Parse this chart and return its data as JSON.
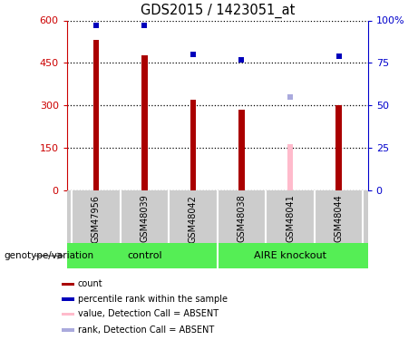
{
  "title": "GDS2015 / 1423051_at",
  "samples": [
    "GSM47956",
    "GSM48039",
    "GSM48042",
    "GSM48038",
    "GSM48041",
    "GSM48044"
  ],
  "bar_values": [
    530,
    477,
    320,
    285,
    162,
    300
  ],
  "bar_colors": [
    "#aa0000",
    "#aa0000",
    "#aa0000",
    "#aa0000",
    "#ffbbcc",
    "#aa0000"
  ],
  "rank_values": [
    97,
    97,
    80,
    77,
    55,
    79
  ],
  "rank_colors": [
    "#0000bb",
    "#0000bb",
    "#0000bb",
    "#0000bb",
    "#aaaadd",
    "#0000bb"
  ],
  "ylim_left": [
    0,
    600
  ],
  "ylim_right": [
    0,
    100
  ],
  "yticks_left": [
    0,
    150,
    300,
    450,
    600
  ],
  "ytick_labels_left": [
    "0",
    "150",
    "300",
    "450",
    "600"
  ],
  "yticks_right": [
    0,
    25,
    50,
    75,
    100
  ],
  "ytick_labels_right": [
    "0",
    "25",
    "50",
    "75",
    "100%"
  ],
  "left_axis_color": "#cc0000",
  "right_axis_color": "#0000cc",
  "legend_items": [
    {
      "label": "count",
      "color": "#aa0000"
    },
    {
      "label": "percentile rank within the sample",
      "color": "#0000bb"
    },
    {
      "label": "value, Detection Call = ABSENT",
      "color": "#ffbbcc"
    },
    {
      "label": "rank, Detection Call = ABSENT",
      "color": "#aaaadd"
    }
  ],
  "group_label": "genotype/variation",
  "bar_width": 0.12,
  "figsize": [
    4.61,
    3.75
  ],
  "dpi": 100
}
